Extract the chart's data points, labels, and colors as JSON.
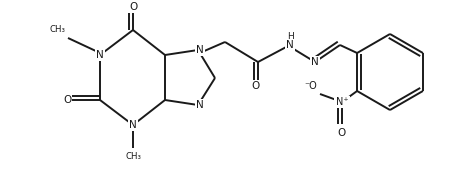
{
  "bg_color": "#ffffff",
  "line_color": "#1a1a1a",
  "line_width": 1.4,
  "figsize": [
    4.58,
    1.73
  ],
  "dpi": 100,
  "xlim": [
    0,
    458
  ],
  "ylim": [
    0,
    173
  ]
}
